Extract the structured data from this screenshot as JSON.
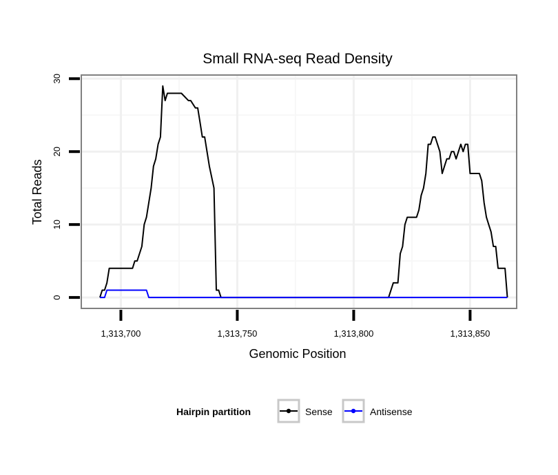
{
  "chart_data": {
    "type": "line",
    "title": "Small RNA-seq Read Density",
    "xlabel": "Genomic Position",
    "ylabel": "Total Reads",
    "xlim": [
      1313683,
      1313870
    ],
    "ylim": [
      -1.5,
      30.5
    ],
    "x_ticks": [
      1313700,
      1313750,
      1313800,
      1313850
    ],
    "x_tick_labels": [
      "1,313,700",
      "1,313,750",
      "1,313,800",
      "1,313,850"
    ],
    "y_ticks": [
      0,
      10,
      20,
      30
    ],
    "y_tick_labels": [
      "0",
      "10",
      "20",
      "30"
    ],
    "grid": true,
    "legend_title": "Hairpin partition",
    "legend_position": "bottom",
    "series": [
      {
        "name": "Sense",
        "color": "#000000",
        "x": [
          1313691,
          1313692,
          1313693,
          1313694,
          1313695,
          1313700,
          1313705,
          1313706,
          1313707,
          1313708,
          1313709,
          1313710,
          1313711,
          1313712,
          1313713,
          1313714,
          1313715,
          1313716,
          1313717,
          1313718,
          1313719,
          1313720,
          1313721,
          1313722,
          1313723,
          1313724,
          1313725,
          1313726,
          1313729,
          1313730,
          1313732,
          1313733,
          1313734,
          1313735,
          1313736,
          1313737,
          1313738,
          1313740,
          1313741,
          1313742,
          1313743,
          1313744,
          1313745,
          1313815,
          1313817,
          1313819,
          1313820,
          1313821,
          1313822,
          1313823,
          1313825,
          1313826,
          1313827,
          1313828,
          1313829,
          1313830,
          1313831,
          1313832,
          1313833,
          1313834,
          1313835,
          1313836,
          1313837,
          1313838,
          1313839,
          1313840,
          1313841,
          1313842,
          1313843,
          1313844,
          1313845,
          1313846,
          1313847,
          1313848,
          1313849,
          1313850,
          1313851,
          1313852,
          1313853,
          1313854,
          1313855,
          1313856,
          1313857,
          1313858,
          1313859,
          1313860,
          1313861,
          1313862,
          1313863,
          1313864,
          1313865,
          1313866
        ],
        "y": [
          0,
          1,
          1,
          2,
          4,
          4,
          4,
          5,
          5,
          6,
          7,
          10,
          11,
          13,
          15,
          18,
          19,
          21,
          22,
          29,
          27,
          28,
          28,
          28,
          28,
          28,
          28,
          28,
          27,
          27,
          26,
          26,
          24,
          22,
          22,
          20,
          18,
          15,
          1,
          1,
          0,
          0,
          0,
          0,
          2,
          2,
          6,
          7,
          10,
          11,
          11,
          11,
          11,
          12,
          14,
          15,
          17,
          21,
          21,
          22,
          22,
          21,
          20,
          17,
          18,
          19,
          19,
          20,
          20,
          19,
          20,
          21,
          20,
          21,
          21,
          17,
          17,
          17,
          17,
          17,
          16,
          13,
          11,
          10,
          9,
          7,
          7,
          4,
          4,
          4,
          4,
          0
        ]
      },
      {
        "name": "Antisense",
        "color": "#0000ff",
        "x": [
          1313691,
          1313693,
          1313694,
          1313695,
          1313711,
          1313712,
          1313866
        ],
        "y": [
          0,
          0,
          1,
          1,
          1,
          0,
          0
        ]
      }
    ]
  }
}
